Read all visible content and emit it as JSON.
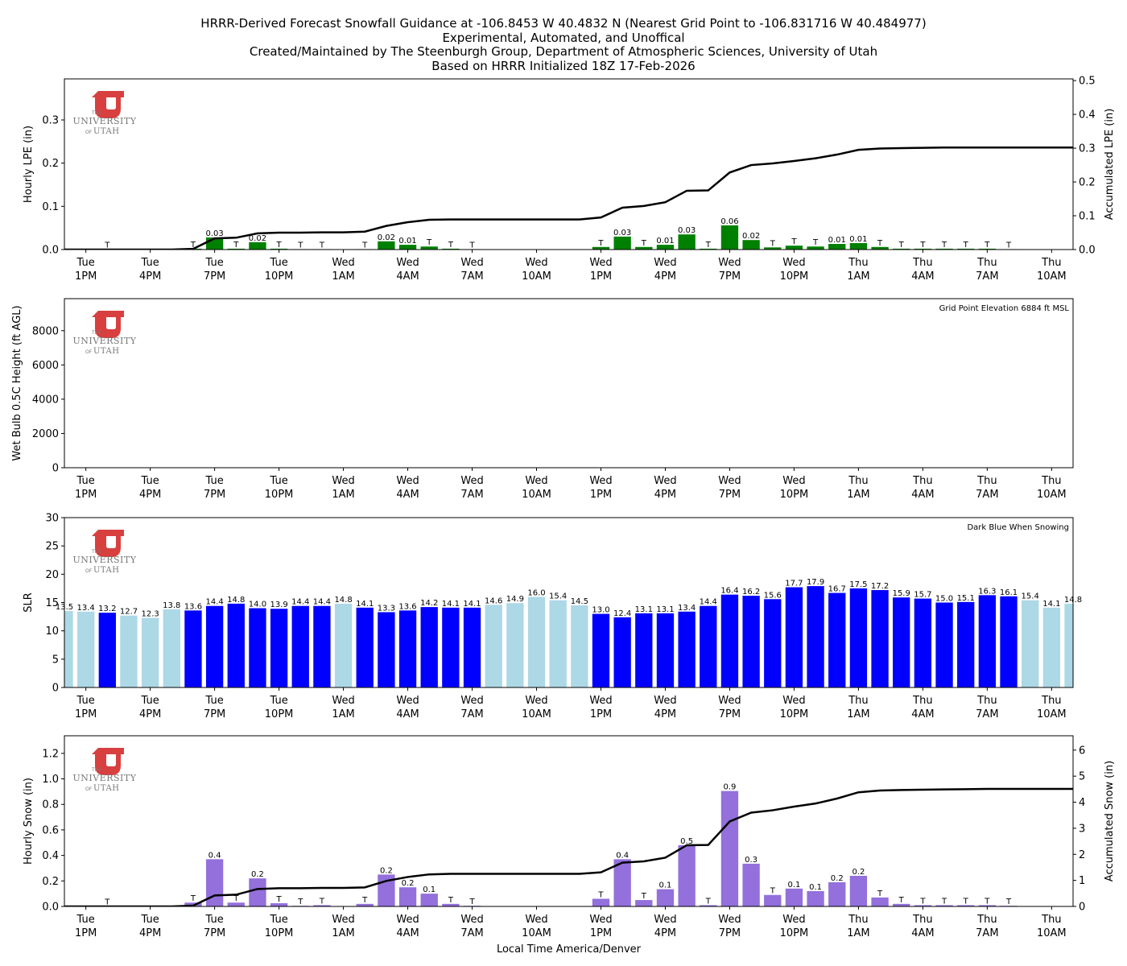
{
  "titles": [
    "HRRR-Derived Forecast Snowfall Guidance at -106.8453 W 40.4832 N (Nearest Grid Point to -106.831716 W 40.484977)",
    "Experimental, Automated, and Unoffical",
    "Created/Maintained by The Steenburgh Group, Department of Atmospheric Sciences, University of Utah",
    "Based on HRRR Initialized 18Z 17-Feb-2026"
  ],
  "logo": {
    "the": "THE",
    "university": "UNIVERSITY",
    "of": "OF",
    "utah": "UTAH",
    "color": "#d83f3f"
  },
  "xlabel": "Local Time America/Denver",
  "chart_data": [
    {
      "type": "bar",
      "ylabel": "Hourly LPE (in)",
      "y2label": "Accumulated LPE (in)",
      "ylim": [
        0,
        0.395
      ],
      "y2lim": [
        0,
        0.505
      ],
      "yticks": [
        "0.0",
        "0.1",
        "0.2",
        "0.3"
      ],
      "y2ticks": [
        "0.0",
        "0.1",
        "0.2",
        "0.3",
        "0.4",
        "0.5"
      ],
      "bar_color": "#008000",
      "values": [
        0,
        0,
        0.001,
        0,
        0,
        0,
        0.002,
        0.028,
        0.002,
        0.017,
        0.002,
        0.001,
        0.001,
        0,
        0.001,
        0.019,
        0.011,
        0.007,
        0.002,
        0.001,
        0,
        0,
        0,
        0,
        0,
        0.006,
        0.03,
        0.006,
        0.011,
        0.035,
        0.002,
        0.056,
        0.022,
        0.005,
        0.009,
        0.007,
        0.013,
        0.015,
        0.006,
        0.002,
        0.002,
        0.002,
        0.002,
        0.002,
        0.001,
        0,
        0,
        0
      ],
      "labels": [
        "",
        "",
        "T",
        "",
        "",
        "",
        "T",
        "0.03",
        "T",
        "0.02",
        "T",
        "T",
        "T",
        "",
        "T",
        "0.02",
        "0.01",
        "T",
        "T",
        "T",
        "",
        "",
        "",
        "",
        "",
        "T",
        "0.03",
        "T",
        "0.01",
        "0.03",
        "T",
        "0.06",
        "0.02",
        "T",
        "T",
        "T",
        "0.01",
        "0.01",
        "T",
        "T",
        "T",
        "T",
        "T",
        "T",
        "T",
        "",
        "",
        ""
      ],
      "accumulated": [
        0,
        0,
        0,
        0,
        0,
        0,
        0.002,
        0.033,
        0.035,
        0.048,
        0.05,
        0.05,
        0.051,
        0.051,
        0.053,
        0.07,
        0.081,
        0.088,
        0.089,
        0.089,
        0.089,
        0.089,
        0.089,
        0.089,
        0.089,
        0.095,
        0.124,
        0.129,
        0.14,
        0.174,
        0.175,
        0.228,
        0.25,
        0.255,
        0.262,
        0.27,
        0.281,
        0.295,
        0.299,
        0.3,
        0.301,
        0.302,
        0.302,
        0.302,
        0.302,
        0.302,
        0.302,
        0.302
      ]
    },
    {
      "type": "bar",
      "ylabel": "Wet Bulb 0.5C Height (ft AGL)",
      "ylim": [
        0,
        9870
      ],
      "yticks": [
        "0",
        "2000",
        "4000",
        "6000",
        "8000"
      ],
      "annotation": "Grid Point Elevation 6884 ft MSL",
      "values": []
    },
    {
      "type": "bar",
      "ylabel": "SLR",
      "ylim": [
        0,
        30
      ],
      "yticks": [
        "0",
        "5",
        "10",
        "15",
        "20",
        "25",
        "30"
      ],
      "annotation": "Dark Blue When Snowing",
      "snowing_color": "#0000ff",
      "not_snowing_color": "#add8e6",
      "values": [
        13.5,
        13.4,
        13.2,
        12.7,
        12.3,
        13.8,
        13.6,
        14.4,
        14.8,
        14.0,
        13.9,
        14.4,
        14.4,
        14.8,
        14.1,
        13.3,
        13.6,
        14.2,
        14.1,
        14.1,
        14.6,
        14.9,
        16.0,
        15.4,
        14.5,
        13.0,
        12.4,
        13.1,
        13.1,
        13.4,
        14.4,
        16.4,
        16.2,
        15.6,
        17.7,
        17.9,
        16.7,
        17.5,
        17.2,
        15.9,
        15.7,
        15.0,
        15.1,
        16.3,
        16.1,
        15.4,
        14.1,
        14.8
      ],
      "labels": [
        "13.5",
        "13.4",
        "13.2",
        "12.7",
        "12.3",
        "13.8",
        "13.6",
        "14.4",
        "14.8",
        "14.0",
        "13.9",
        "14.4",
        "14.4",
        "14.8",
        "14.1",
        "13.3",
        "13.6",
        "14.2",
        "14.1",
        "14.1",
        "14.6",
        "14.9",
        "16.0",
        "15.4",
        "14.5",
        "13.0",
        "12.4",
        "13.1",
        "13.1",
        "13.4",
        "14.4",
        "16.4",
        "16.2",
        "15.6",
        "17.7",
        "17.9",
        "16.7",
        "17.5",
        "17.2",
        "15.9",
        "15.7",
        "15.0",
        "15.1",
        "16.3",
        "16.1",
        "15.4",
        "14.1",
        "14.8"
      ],
      "snowing": [
        0,
        0,
        1,
        0,
        0,
        0,
        1,
        1,
        1,
        1,
        1,
        1,
        1,
        0,
        1,
        1,
        1,
        1,
        1,
        1,
        0,
        0,
        0,
        0,
        0,
        1,
        1,
        1,
        1,
        1,
        1,
        1,
        1,
        1,
        1,
        1,
        1,
        1,
        1,
        1,
        1,
        1,
        1,
        1,
        1,
        0,
        0,
        0
      ]
    },
    {
      "type": "bar",
      "ylabel": "Hourly Snow (in)",
      "y2label": "Accumulated Snow (in)",
      "ylim": [
        0,
        1.338
      ],
      "y2lim": [
        0,
        6.55
      ],
      "yticks": [
        "0.0",
        "0.2",
        "0.4",
        "0.6",
        "0.8",
        "1.0",
        "1.2"
      ],
      "y2ticks": [
        "0",
        "1",
        "2",
        "3",
        "4",
        "5",
        "6"
      ],
      "bar_color": "#9370db",
      "values": [
        0,
        0,
        0.003,
        0,
        0,
        0,
        0.03,
        0.37,
        0.03,
        0.22,
        0.025,
        0.005,
        0.01,
        0,
        0.02,
        0.25,
        0.15,
        0.1,
        0.02,
        0.005,
        0,
        0,
        0,
        0,
        0,
        0.06,
        0.37,
        0.05,
        0.135,
        0.48,
        0.01,
        0.905,
        0.335,
        0.09,
        0.14,
        0.12,
        0.19,
        0.24,
        0.07,
        0.02,
        0.01,
        0.01,
        0.01,
        0.01,
        0.005,
        0,
        0,
        0
      ],
      "labels": [
        "",
        "",
        "T",
        "",
        "",
        "",
        "T",
        "0.4",
        "T",
        "0.2",
        "T",
        "T",
        "T",
        "",
        "T",
        "0.2",
        "0.2",
        "0.1",
        "T",
        "T",
        "",
        "",
        "",
        "",
        "",
        "T",
        "0.4",
        "T",
        "0.1",
        "0.5",
        "T",
        "0.9",
        "0.3",
        "T",
        "0.1",
        "0.1",
        "0.2",
        "0.2",
        "T",
        "T",
        "T",
        "T",
        "T",
        "T",
        "T",
        "",
        "",
        ""
      ],
      "accumulated": [
        0,
        0,
        0,
        0,
        0,
        0,
        0.03,
        0.42,
        0.45,
        0.67,
        0.7,
        0.7,
        0.71,
        0.71,
        0.73,
        0.98,
        1.13,
        1.23,
        1.25,
        1.25,
        1.25,
        1.25,
        1.25,
        1.25,
        1.25,
        1.31,
        1.68,
        1.73,
        1.87,
        2.35,
        2.36,
        3.26,
        3.6,
        3.69,
        3.83,
        3.95,
        4.14,
        4.38,
        4.45,
        4.47,
        4.48,
        4.49,
        4.5,
        4.51,
        4.51,
        4.51,
        4.51,
        4.51
      ]
    }
  ],
  "xticks": [
    [
      "Tue",
      "1PM"
    ],
    [
      "Tue",
      "4PM"
    ],
    [
      "Tue",
      "7PM"
    ],
    [
      "Tue",
      "10PM"
    ],
    [
      "Wed",
      "1AM"
    ],
    [
      "Wed",
      "4AM"
    ],
    [
      "Wed",
      "7AM"
    ],
    [
      "Wed",
      "10AM"
    ],
    [
      "Wed",
      "1PM"
    ],
    [
      "Wed",
      "4PM"
    ],
    [
      "Wed",
      "7PM"
    ],
    [
      "Wed",
      "10PM"
    ],
    [
      "Thu",
      "1AM"
    ],
    [
      "Thu",
      "4AM"
    ],
    [
      "Thu",
      "7AM"
    ],
    [
      "Thu",
      "10AM"
    ]
  ]
}
